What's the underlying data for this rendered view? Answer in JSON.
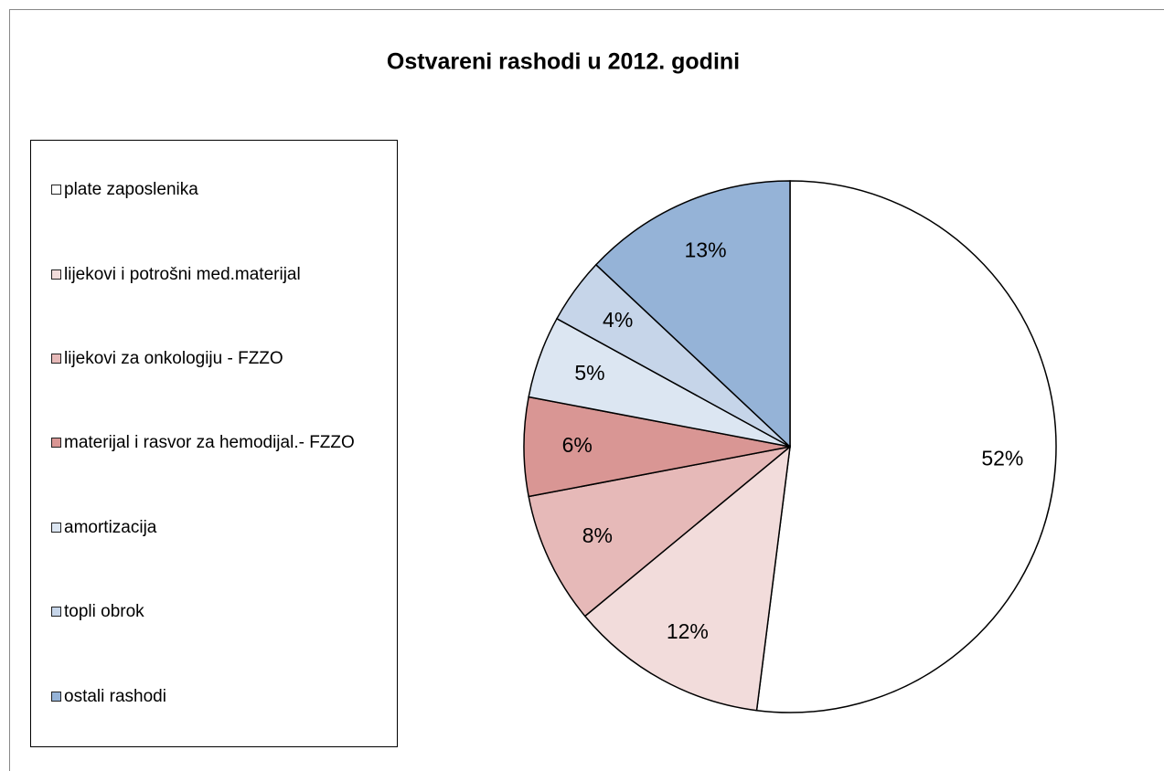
{
  "chart_data": {
    "type": "pie",
    "title": "Ostvareni rashodi u 2012. godini",
    "categories": [
      "plate zaposlenika",
      "lijekovi i potrošni med.materijal",
      "lijekovi za onkologiju - FZZO",
      "materijal i rasvor za hemodijal.- FZZO",
      "amortizacija",
      "topli obrok",
      "ostali rashodi"
    ],
    "values": [
      52,
      12,
      8,
      6,
      5,
      4,
      13
    ],
    "value_labels": [
      "52%",
      "12%",
      "8%",
      "6%",
      "5%",
      "4%",
      "13%"
    ],
    "colors": [
      "#ffffff",
      "#f2dcdb",
      "#e6b9b8",
      "#d99694",
      "#dce6f2",
      "#c6d5e9",
      "#95b3d7"
    ],
    "legend": "left"
  }
}
